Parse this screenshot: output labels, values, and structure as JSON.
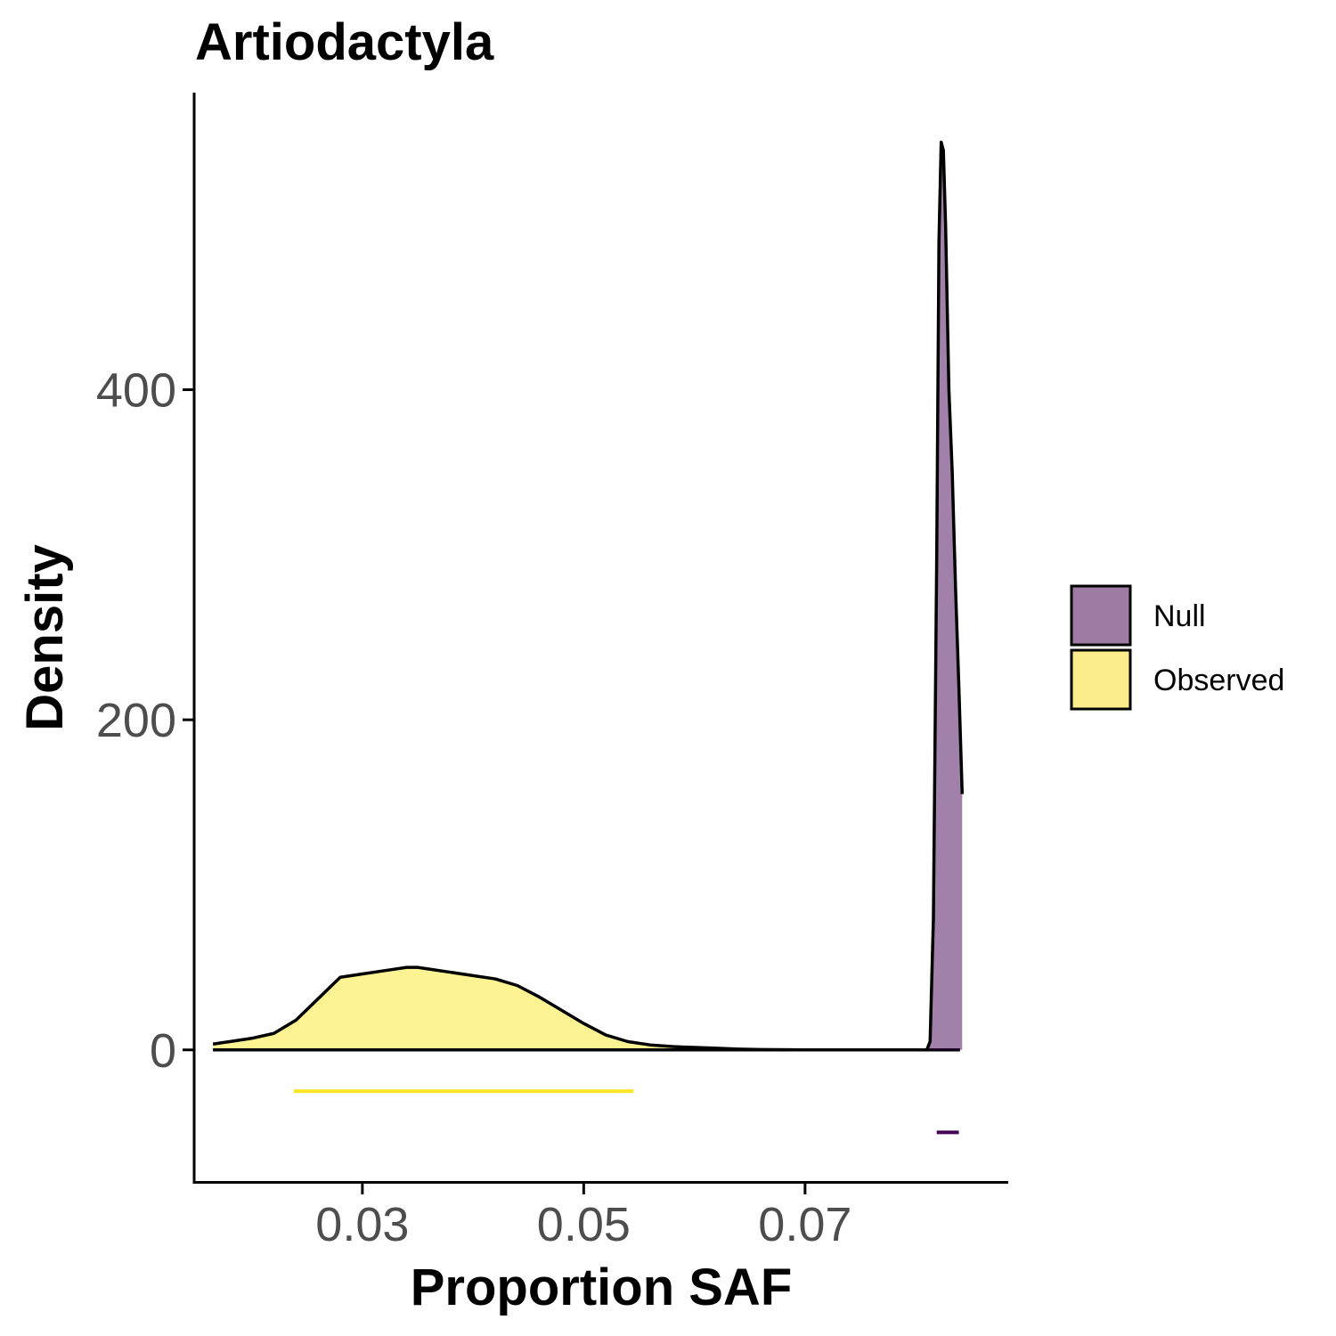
{
  "chart_data": {
    "type": "area",
    "title": "Artiodactyla",
    "xlabel": "Proportion SAF",
    "ylabel": "Density",
    "xlim": [
      0.0148,
      0.0882
    ],
    "ylim": [
      -80,
      580
    ],
    "x_ticks": [
      0.03,
      0.05,
      0.07
    ],
    "x_tick_labels": [
      "0.03",
      "0.05",
      "0.07"
    ],
    "y_ticks": [
      0,
      200,
      400
    ],
    "y_tick_labels": [
      "0",
      "200",
      "400"
    ],
    "grid": false,
    "legend_position": "right",
    "series": [
      {
        "name": "Observed",
        "color": "#fde725",
        "fill_opacity": 0.5,
        "x": [
          0.0165,
          0.018,
          0.02,
          0.022,
          0.024,
          0.026,
          0.028,
          0.03,
          0.032,
          0.034,
          0.035,
          0.036,
          0.038,
          0.04,
          0.042,
          0.044,
          0.046,
          0.048,
          0.05,
          0.052,
          0.054,
          0.056,
          0.058,
          0.06,
          0.062,
          0.064,
          0.066,
          0.07,
          0.075,
          0.08,
          0.084
        ],
        "y": [
          3.5,
          5,
          7,
          10,
          18,
          31,
          44,
          46,
          48,
          50,
          50,
          49,
          47,
          45,
          43,
          39,
          32,
          24,
          16,
          9,
          5,
          3,
          2,
          1.5,
          1,
          0.5,
          0.2,
          0,
          0,
          0,
          0
        ]
      },
      {
        "name": "Null",
        "color": "#440154",
        "fill_opacity": 0.5,
        "x": [
          0.0165,
          0.08,
          0.081,
          0.0813,
          0.0816,
          0.0819,
          0.0821,
          0.0823,
          0.0825,
          0.0827,
          0.083,
          0.0833,
          0.0836,
          0.0839,
          0.0842
        ],
        "y": [
          0,
          0,
          0,
          5,
          80,
          300,
          490,
          550,
          545,
          500,
          400,
          350,
          280,
          220,
          155
        ]
      }
    ],
    "interval_bars": [
      {
        "name": "Observed",
        "color": "#fde725",
        "x_start": 0.0238,
        "x_end": 0.0545,
        "y": -25
      },
      {
        "name": "Null",
        "color": "#440154",
        "x_start": 0.0819,
        "x_end": 0.0839,
        "y": -50
      }
    ],
    "legend": [
      {
        "name": "Null",
        "swatch_color": "#9e7ba3"
      },
      {
        "name": "Observed",
        "swatch_color": "#fbed8c"
      }
    ]
  }
}
